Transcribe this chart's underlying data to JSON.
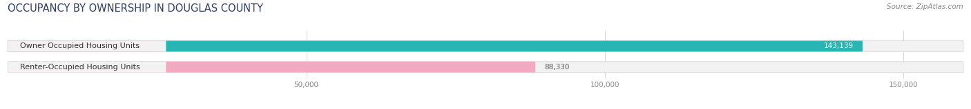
{
  "title": "OCCUPANCY BY OWNERSHIP IN DOUGLAS COUNTY",
  "source": "Source: ZipAtlas.com",
  "categories": [
    "Owner Occupied Housing Units",
    "Renter-Occupied Housing Units"
  ],
  "values": [
    143139,
    88330
  ],
  "bar_colors": [
    "#2ab5b5",
    "#f4a9c0"
  ],
  "value_label_colors": [
    "white",
    "#555555"
  ],
  "background_color": "#ffffff",
  "bar_bg_color": "#f2f2f2",
  "bar_border_color": "#dddddd",
  "xlim": [
    0,
    160000
  ],
  "xticks": [
    50000,
    100000,
    150000
  ],
  "xtick_labels": [
    "50,000",
    "100,000",
    "150,000"
  ],
  "title_fontsize": 10.5,
  "source_fontsize": 7.5,
  "bar_label_fontsize": 7.5,
  "cat_label_fontsize": 8,
  "bar_height": 0.52
}
